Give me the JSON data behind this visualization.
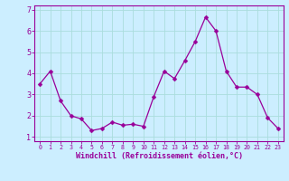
{
  "x": [
    0,
    1,
    2,
    3,
    4,
    5,
    6,
    7,
    8,
    9,
    10,
    11,
    12,
    13,
    14,
    15,
    16,
    17,
    18,
    19,
    20,
    21,
    22,
    23
  ],
  "y": [
    3.5,
    4.1,
    2.7,
    2.0,
    1.85,
    1.3,
    1.4,
    1.7,
    1.55,
    1.6,
    1.5,
    2.9,
    4.1,
    3.75,
    4.6,
    5.5,
    6.65,
    6.0,
    4.1,
    3.35,
    3.35,
    3.0,
    1.9,
    1.4
  ],
  "line_color": "#990099",
  "marker": "D",
  "marker_size": 2.5,
  "bg_color": "#cceeff",
  "grid_color": "#aadddd",
  "xlabel": "Windchill (Refroidissement éolien,°C)",
  "ylabel": "",
  "ylim": [
    0.8,
    7.2
  ],
  "xlim": [
    -0.5,
    23.5
  ],
  "yticks": [
    1,
    2,
    3,
    4,
    5,
    6,
    7
  ],
  "xticks": [
    0,
    1,
    2,
    3,
    4,
    5,
    6,
    7,
    8,
    9,
    10,
    11,
    12,
    13,
    14,
    15,
    16,
    17,
    18,
    19,
    20,
    21,
    22,
    23
  ],
  "tick_color": "#990099",
  "label_color": "#990099",
  "spine_color": "#990099",
  "axis_bg": "#cceeff"
}
